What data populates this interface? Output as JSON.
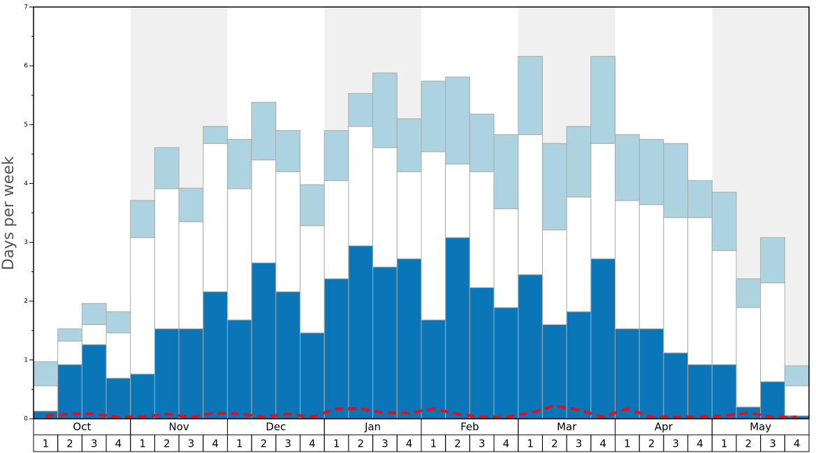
{
  "chart_data": {
    "type": "stacked_bar",
    "y_label": "Days per week",
    "months": [
      "Oct",
      "Nov",
      "Dec",
      "Jan",
      "Feb",
      "Mar",
      "Apr",
      "May"
    ],
    "categories": [
      "1",
      "2",
      "3",
      "4",
      "1",
      "2",
      "3",
      "4",
      "1",
      "2",
      "3",
      "4",
      "1",
      "2",
      "3",
      "4",
      "1",
      "2",
      "3",
      "4",
      "1",
      "2",
      "3",
      "4",
      "1",
      "2",
      "3",
      "4",
      "1",
      "2",
      "3",
      "4"
    ],
    "series": [
      {
        "color": "#0a76b8",
        "values": [
          0.13,
          0.92,
          1.26,
          0.69,
          0.76,
          1.53,
          1.53,
          2.16,
          1.68,
          2.65,
          2.16,
          1.46,
          2.38,
          2.94,
          2.58,
          2.72,
          1.68,
          3.08,
          2.23,
          1.89,
          2.45,
          1.6,
          1.82,
          2.72,
          1.53,
          1.53,
          1.12,
          0.92,
          0.92,
          0.2,
          0.63,
          0.05
        ]
      },
      {
        "color": "#ffffff",
        "values": [
          0.43,
          0.4,
          0.34,
          0.77,
          2.32,
          2.38,
          1.82,
          2.52,
          2.23,
          1.75,
          2.04,
          1.82,
          1.67,
          2.03,
          2.03,
          1.48,
          2.86,
          1.25,
          1.97,
          1.68,
          2.38,
          1.61,
          1.95,
          1.96,
          2.18,
          2.11,
          2.3,
          2.5,
          1.94,
          1.69,
          1.68,
          0.51
        ]
      },
      {
        "color": "#aed3e0",
        "values": [
          0.41,
          0.21,
          0.36,
          0.36,
          0.63,
          0.7,
          0.57,
          0.29,
          0.84,
          0.98,
          0.7,
          0.7,
          0.85,
          0.56,
          1.27,
          0.9,
          1.2,
          1.48,
          0.98,
          1.26,
          1.33,
          1.47,
          1.2,
          1.48,
          1.12,
          1.11,
          1.26,
          0.63,
          0.99,
          0.49,
          0.77,
          0.34
        ]
      }
    ],
    "line": {
      "color": "#e0101e",
      "values": [
        0.05,
        0.08,
        0.08,
        0.03,
        0.03,
        0.08,
        0.03,
        0.1,
        0.08,
        0.03,
        0.08,
        0.03,
        0.17,
        0.17,
        0.1,
        0.1,
        0.17,
        0.08,
        0.03,
        0.03,
        0.1,
        0.22,
        0.15,
        0.03,
        0.17,
        0.03,
        0.03,
        0.03,
        0.05,
        0.1,
        0.03,
        0.03
      ]
    },
    "ylim": [
      0,
      7
    ],
    "yticks": [
      0,
      1,
      2,
      3,
      4,
      5,
      6,
      7
    ],
    "minor_yticks": [
      0.5,
      1.5,
      2.5,
      3.5,
      4.5,
      5.5,
      6.5
    ]
  }
}
